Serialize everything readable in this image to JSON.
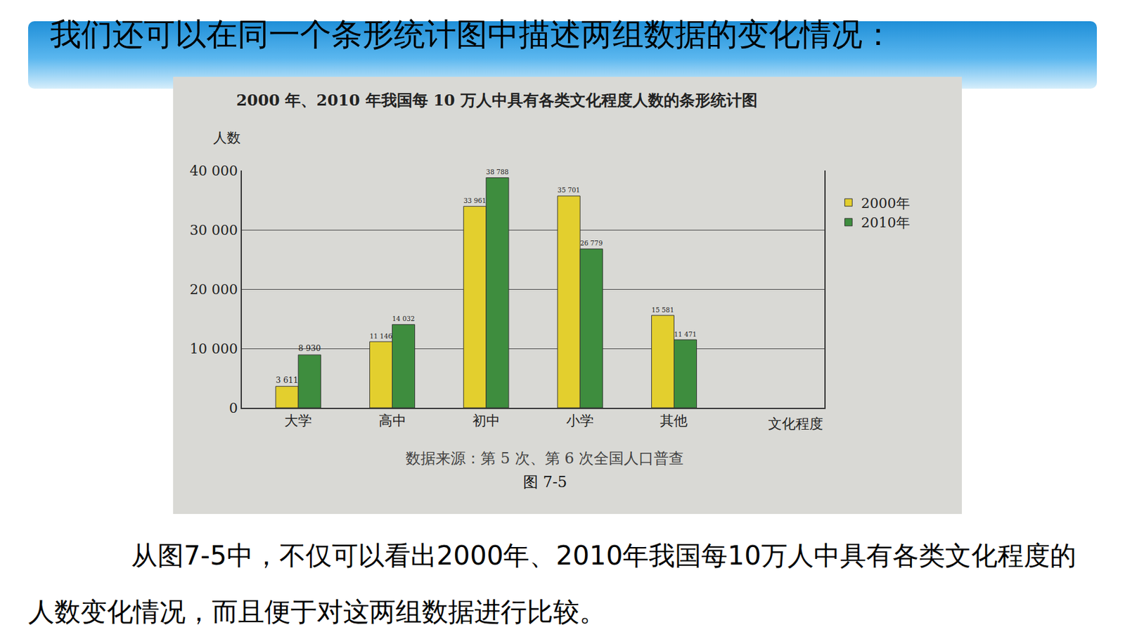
{
  "slide": {
    "heading": "我们还可以在同一个条形统计图中描述两组数据的变化情况：",
    "text": "从图7-5中，不仅可以看出2000年、2010年我国每10万人中具有各类文化程度的人数变化情况，而且便于对这两组数据进行比较。"
  },
  "chart_data": {
    "type": "bar",
    "title": "2000 年、2010 年我国每 10 万人中具有各类文化程度人数的条形统计图",
    "x_label": "文化程度",
    "y_label": "人数",
    "categories": [
      "大学",
      "高中",
      "初中",
      "小学",
      "其他"
    ],
    "series": [
      {
        "name": "2000年",
        "color": "#e3cf2e",
        "values": [
          3611,
          11146,
          33961,
          35701,
          15581
        ],
        "value_labels": [
          "3 611",
          "11 146",
          "33 961",
          "35 701",
          "15 581"
        ]
      },
      {
        "name": "2010年",
        "color": "#3e8d3e",
        "values": [
          8930,
          14032,
          38788,
          26779,
          11471
        ],
        "value_labels": [
          "8 930",
          "14 032",
          "38 788",
          "26 779",
          "11 471"
        ]
      }
    ],
    "ylim": [
      0,
      40000
    ],
    "yticks": [
      0,
      {
        "value": 10000,
        "label": "10 000"
      },
      {
        "value": 20000,
        "label": "20 000"
      },
      {
        "value": 30000,
        "label": "30 000"
      },
      {
        "value": 40000,
        "label": "40 000"
      }
    ],
    "grid": true,
    "legend": "right",
    "data_labels": true,
    "annotations": [
      "数据来源：第 5 次、第 6 次全国人口普查",
      "图 7-5"
    ]
  }
}
